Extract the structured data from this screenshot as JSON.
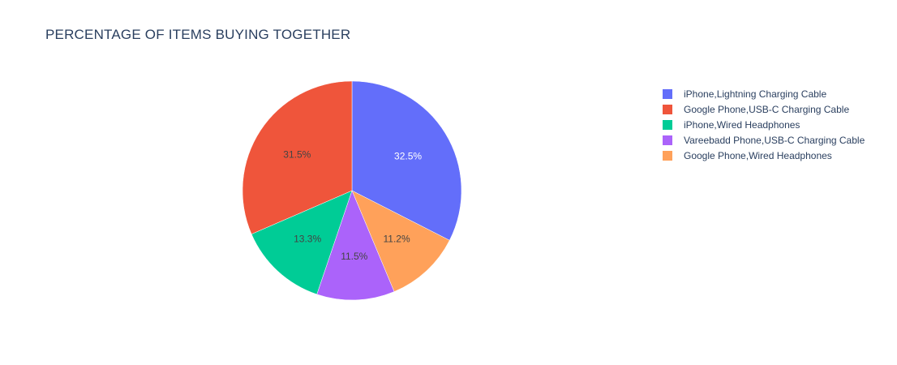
{
  "chart_data": {
    "type": "pie",
    "title": "PERCENTAGE OF ITEMS BUYING TOGETHER",
    "labels": [
      "iPhone,Lightning Charging Cable",
      "Google Phone,USB-C Charging Cable",
      "iPhone,Wired Headphones",
      "Vareebadd Phone,USB-C Charging Cable",
      "Google Phone,Wired Headphones"
    ],
    "values": [
      32.5,
      31.5,
      13.3,
      11.5,
      11.2
    ],
    "value_labels": [
      "32.5%",
      "31.5%",
      "13.3%",
      "11.5%",
      "11.2%"
    ],
    "colors": [
      "#636efa",
      "#ef553b",
      "#00cc96",
      "#ab63fa",
      "#ffa15a"
    ],
    "slice_order": [
      "iPhone,Lightning Charging Cable",
      "Google Phone,Wired Headphones",
      "Vareebadd Phone,USB-C Charging Cable",
      "iPhone,Wired Headphones",
      "Google Phone,USB-C Charging Cable"
    ],
    "direction": "clockwise",
    "legend_position": "right"
  }
}
